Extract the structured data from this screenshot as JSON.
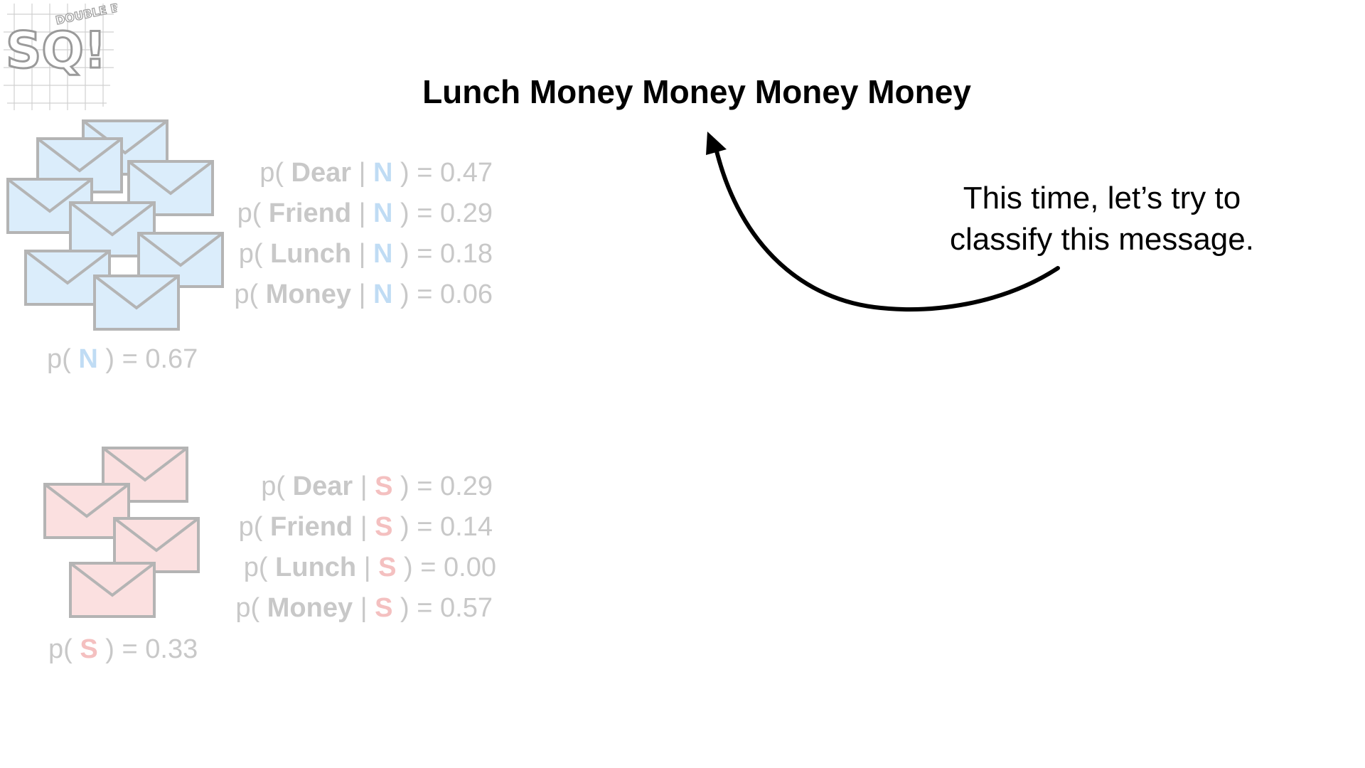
{
  "title": "Lunch Money Money Money Money",
  "annotation": {
    "line1": "This time, let’s try to",
    "line2": "classify this message."
  },
  "logo": {
    "letters": "SQ!",
    "tag": "DOUBLE BAM!!"
  },
  "normal": {
    "class": "N",
    "color": "#c0dcf4",
    "prior": "0.67",
    "likelihoods": [
      {
        "word": "Dear",
        "value": "0.47"
      },
      {
        "word": "Friend",
        "value": "0.29"
      },
      {
        "word": "Lunch",
        "value": "0.18"
      },
      {
        "word": "Money",
        "value": "0.06"
      }
    ]
  },
  "spam": {
    "class": "S",
    "color": "#f4c0c0",
    "prior": "0.33",
    "likelihoods": [
      {
        "word": "Dear",
        "value": "0.29"
      },
      {
        "word": "Friend",
        "value": "0.14"
      },
      {
        "word": "Lunch",
        "value": "0.00"
      },
      {
        "word": "Money",
        "value": "0.57"
      }
    ]
  }
}
